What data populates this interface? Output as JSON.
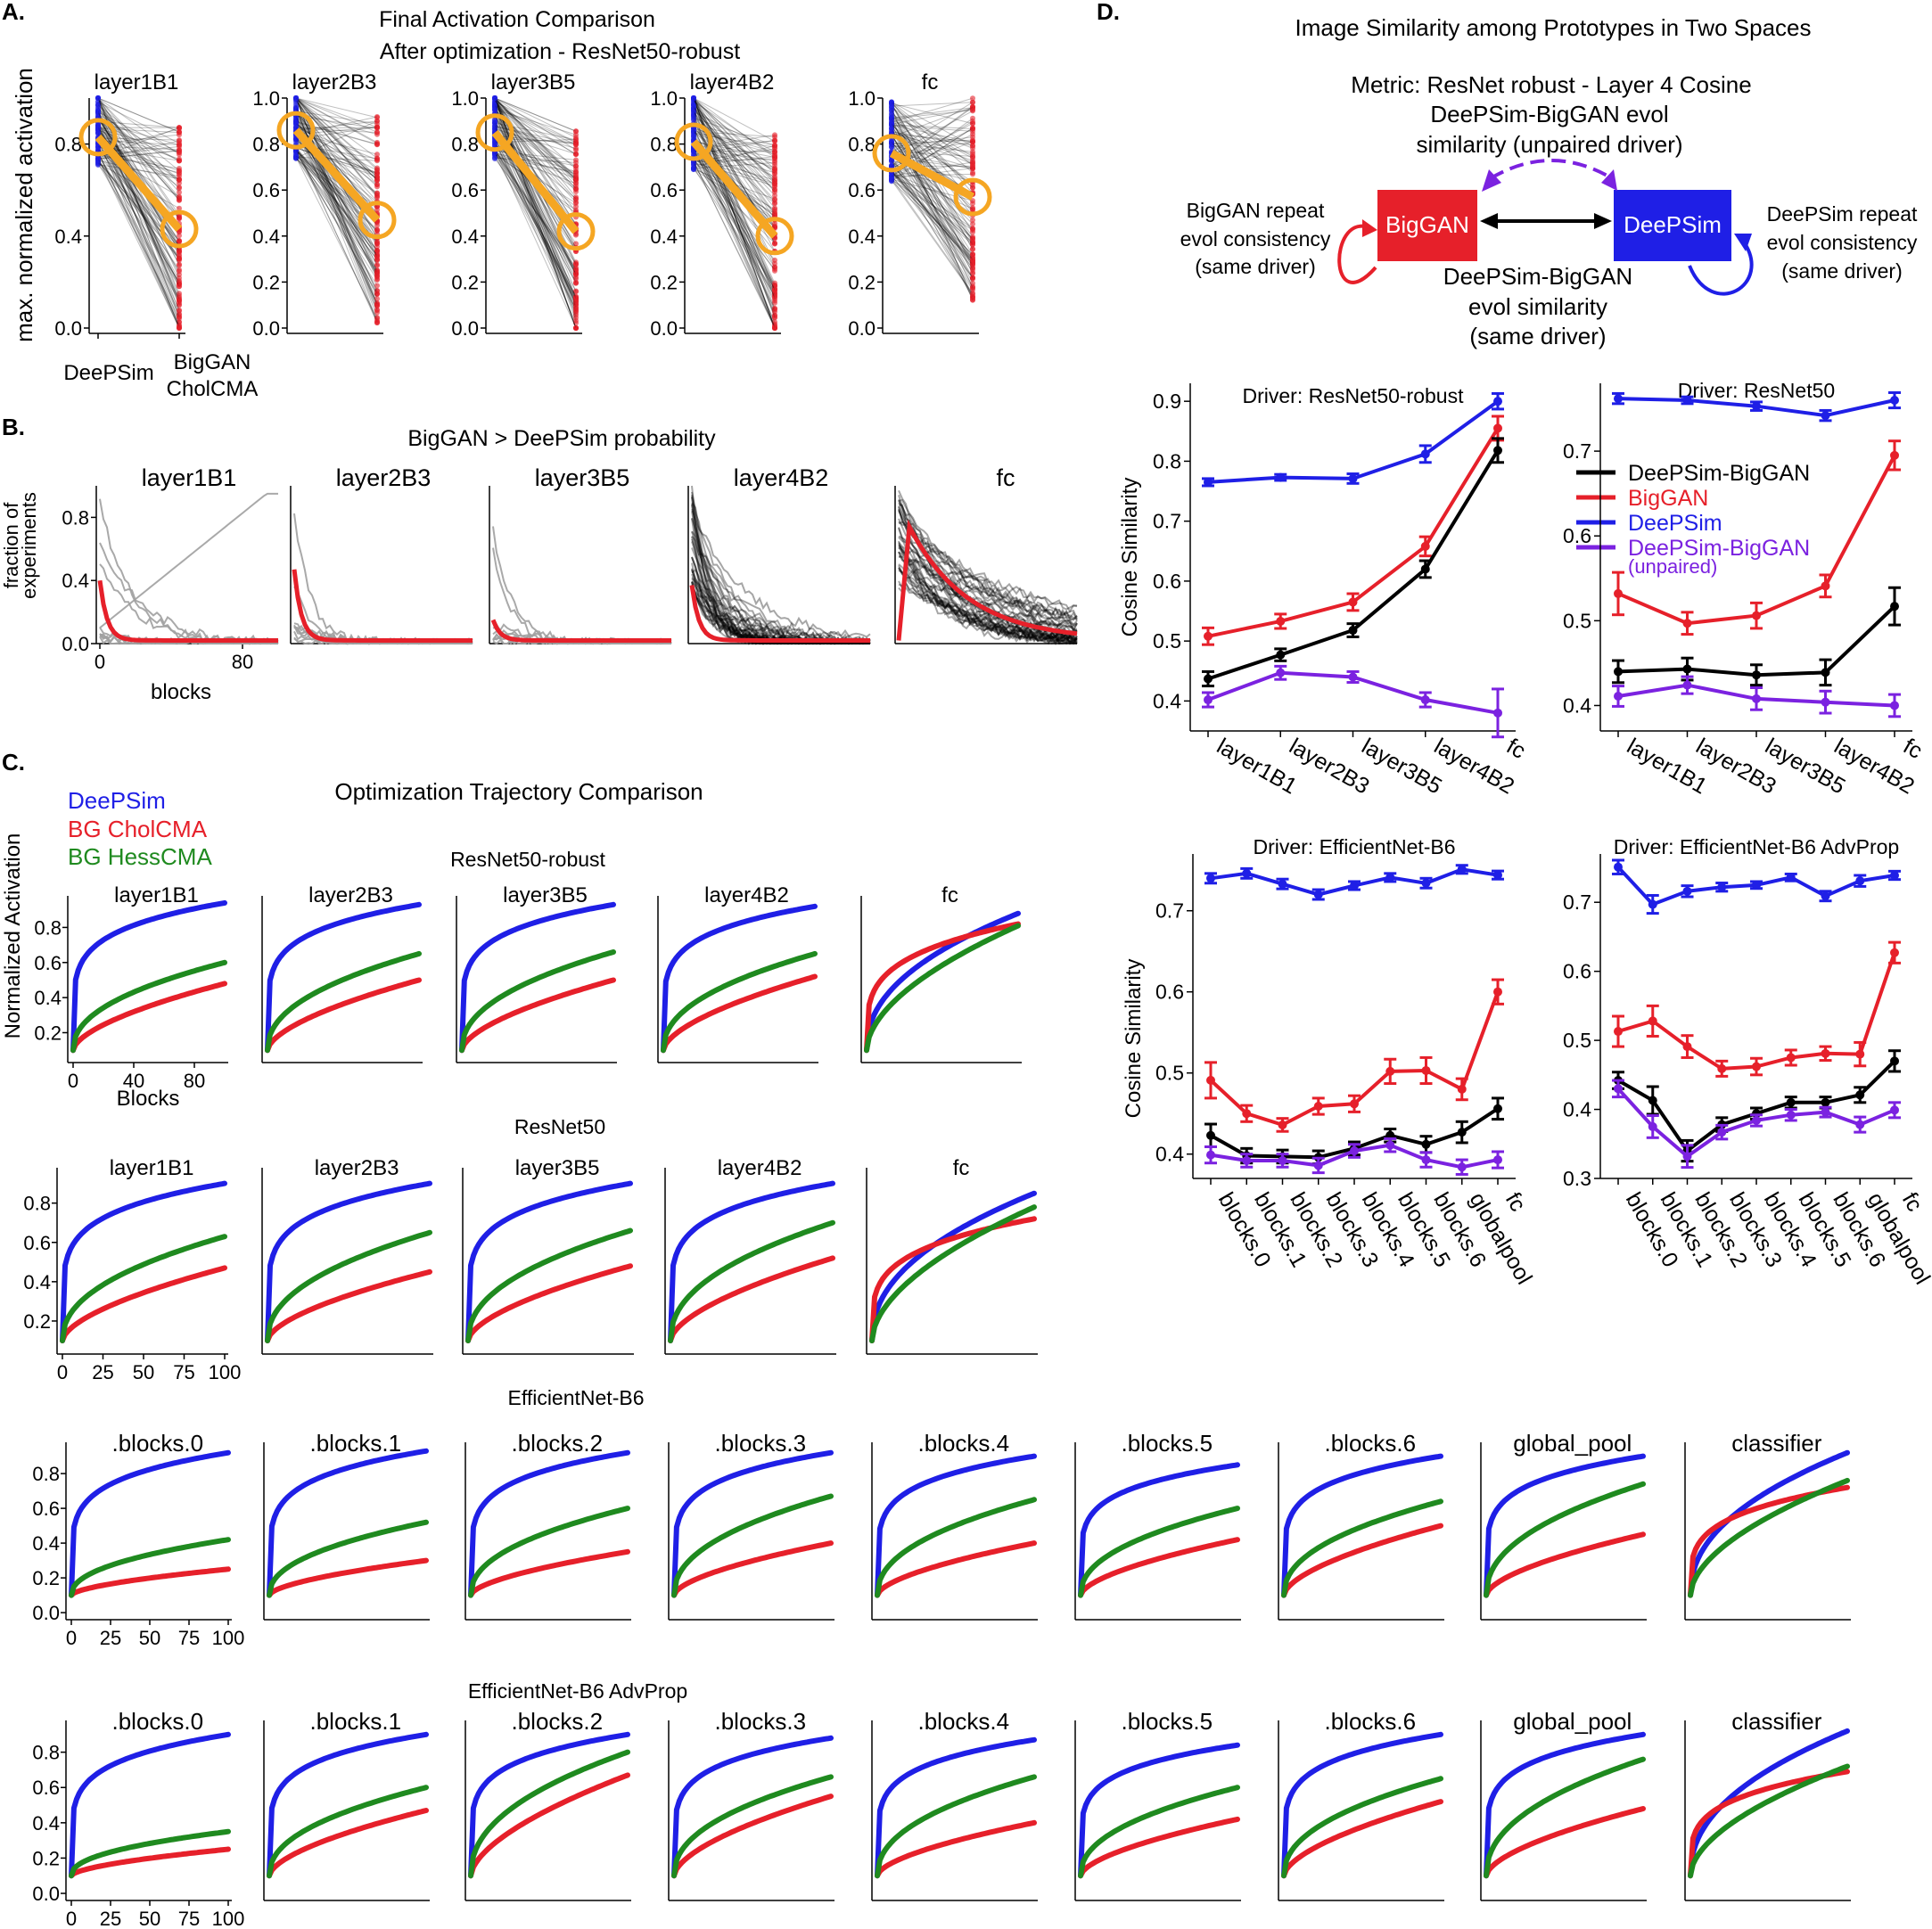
{
  "colors": {
    "deepsim": "#1f1fe6",
    "biggan": "#e6202a",
    "hess": "#1f8a1f",
    "pair": "#000000",
    "unpaired": "#7b22e0",
    "orange": "#f5a623",
    "gray": "#a0a0a0"
  },
  "panelA": {
    "letter": "A.",
    "title1": "Final Activation Comparison",
    "title2": "After optimization - ResNet50-robust",
    "ylabel": "max. normalized activation",
    "xlabel_left": "DeePSim",
    "xlabel_right1": "BigGAN",
    "xlabel_right2": "CholCMA",
    "layers": [
      "layer1B1",
      "layer2B3",
      "layer3B5",
      "layer4B2",
      "fc"
    ],
    "first_ticks": [
      "0.0",
      "0.4",
      "0.8"
    ],
    "other_ticks": [
      "0.0",
      "0.2",
      "0.4",
      "0.6",
      "0.8",
      "1.0"
    ]
  },
  "panelB": {
    "letter": "B.",
    "title": "BigGAN > DeePSim probability",
    "ylabel1": "fraction of",
    "ylabel2": "experiments",
    "xlabel": "blocks",
    "xticks": [
      "0",
      "80"
    ],
    "yticks": [
      "0.0",
      "0.4",
      "0.8"
    ],
    "layers": [
      "layer1B1",
      "layer2B3",
      "layer3B5",
      "layer4B2",
      "fc"
    ]
  },
  "panelC": {
    "letter": "C.",
    "title": "Optimization Trajectory Comparison",
    "legend": [
      "DeePSim",
      "BG CholCMA",
      "BG HessCMA"
    ],
    "ylabel": "Normalized Activation",
    "xlabel": "Blocks",
    "xticks_r1": [
      "0",
      "40",
      "80"
    ],
    "xticks_rest": [
      "0",
      "25",
      "50",
      "75",
      "100"
    ],
    "row1_title": "ResNet50-robust",
    "row2_title": "ResNet50",
    "row3_title": "EfficientNet-B6",
    "row4_title": "EfficientNet-B6 AdvProp",
    "yticks_r1": [
      "0.2",
      "0.4",
      "0.6",
      "0.8"
    ],
    "yticks_r2": [
      "0.2",
      "0.4",
      "0.6",
      "0.8"
    ],
    "yticks_eff": [
      "0.0",
      "0.2",
      "0.4",
      "0.6",
      "0.8"
    ],
    "resnet_layers": [
      "layer1B1",
      "layer2B3",
      "layer3B5",
      "layer4B2",
      "fc"
    ],
    "eff_layers": [
      ".blocks.0",
      ".blocks.1",
      ".blocks.2",
      ".blocks.3",
      ".blocks.4",
      ".blocks.5",
      ".blocks.6",
      "global_pool",
      "classifier"
    ]
  },
  "panelD": {
    "letter": "D.",
    "title": "Image Similarity among Prototypes in Two Spaces",
    "metric": "Metric: ResNet robust - Layer 4 Cosine",
    "unpaired1": "DeePSim-BigGAN evol",
    "unpaired2": "similarity (unpaired driver)",
    "biggan_box": "BigGAN",
    "deepsim_box": "DeePSim",
    "bg_repeat1": "BigGAN repeat",
    "bg_repeat2": "evol consistency",
    "bg_repeat3": "(same driver)",
    "ds_repeat1": "DeePSim repeat",
    "ds_repeat2": "evol consistency",
    "ds_repeat3": "(same driver)",
    "same1": "DeePSim-BigGAN",
    "same2": "evol similarity",
    "same3": "(same driver)",
    "ylabel": "Cosine Similarity",
    "legend": [
      "DeePSim-BigGAN",
      "BigGAN",
      "DeePSim",
      "DeePSim-BigGAN",
      "(unpaired)"
    ]
  },
  "chart_data": [
    {
      "type": "line",
      "title": "Driver: ResNet50-robust",
      "ylabel": "Cosine Similarity",
      "ylim": [
        0.35,
        0.93
      ],
      "yticks": [
        "0.4",
        "0.5",
        "0.6",
        "0.7",
        "0.8",
        "0.9"
      ],
      "categories": [
        "layer1B1",
        "layer2B3",
        "layer3B5",
        "layer4B2",
        "fc"
      ],
      "series": [
        {
          "name": "DeePSim",
          "values": [
            0.765,
            0.773,
            0.771,
            0.812,
            0.9
          ],
          "err": [
            0.006,
            0.005,
            0.008,
            0.014,
            0.013
          ]
        },
        {
          "name": "BigGAN",
          "values": [
            0.508,
            0.533,
            0.565,
            0.658,
            0.855
          ],
          "err": [
            0.014,
            0.012,
            0.014,
            0.016,
            0.02
          ]
        },
        {
          "name": "DeePSim-BigGAN",
          "values": [
            0.437,
            0.477,
            0.518,
            0.62,
            0.818
          ],
          "err": [
            0.012,
            0.01,
            0.011,
            0.014,
            0.02
          ]
        },
        {
          "name": "DeePSim-BigGAN (unpaired)",
          "values": [
            0.402,
            0.447,
            0.44,
            0.402,
            0.38
          ],
          "err": [
            0.012,
            0.011,
            0.009,
            0.012,
            0.04
          ]
        }
      ]
    },
    {
      "type": "line",
      "title": "Driver: ResNet50",
      "ylabel": "",
      "ylim": [
        0.37,
        0.78
      ],
      "yticks": [
        "0.4",
        "0.5",
        "0.6",
        "0.7"
      ],
      "categories": [
        "layer1B1",
        "layer2B3",
        "layer3B5",
        "layer4B2",
        "fc"
      ],
      "series": [
        {
          "name": "DeePSim",
          "values": [
            0.762,
            0.76,
            0.753,
            0.742,
            0.76
          ],
          "err": [
            0.006,
            0.004,
            0.005,
            0.006,
            0.009
          ]
        },
        {
          "name": "BigGAN",
          "values": [
            0.532,
            0.497,
            0.506,
            0.541,
            0.695
          ],
          "err": [
            0.025,
            0.013,
            0.015,
            0.013,
            0.017
          ]
        },
        {
          "name": "DeePSim-BigGAN",
          "values": [
            0.44,
            0.443,
            0.436,
            0.439,
            0.517
          ],
          "err": [
            0.013,
            0.013,
            0.012,
            0.015,
            0.022
          ]
        },
        {
          "name": "DeePSim-BigGAN (unpaired)",
          "values": [
            0.411,
            0.424,
            0.408,
            0.404,
            0.4
          ],
          "err": [
            0.012,
            0.01,
            0.013,
            0.013,
            0.013
          ]
        }
      ]
    },
    {
      "type": "line",
      "title": "Driver: EfficientNet-B6",
      "ylabel": "Cosine Similarity",
      "ylim": [
        0.37,
        0.77
      ],
      "yticks": [
        "0.4",
        "0.5",
        "0.6",
        "0.7"
      ],
      "categories": [
        "blocks.0",
        "blocks.1",
        "blocks.2",
        "blocks.3",
        "blocks.4",
        "blocks.5",
        "blocks.6",
        "globalpool",
        "fc"
      ],
      "series": [
        {
          "name": "DeePSim",
          "values": [
            0.74,
            0.746,
            0.733,
            0.72,
            0.731,
            0.741,
            0.734,
            0.751,
            0.744
          ],
          "err": [
            0.006,
            0.006,
            0.006,
            0.006,
            0.005,
            0.005,
            0.006,
            0.005,
            0.005
          ]
        },
        {
          "name": "BigGAN",
          "values": [
            0.491,
            0.45,
            0.436,
            0.459,
            0.462,
            0.502,
            0.503,
            0.48,
            0.6
          ],
          "err": [
            0.022,
            0.01,
            0.008,
            0.01,
            0.01,
            0.015,
            0.016,
            0.013,
            0.015
          ]
        },
        {
          "name": "DeePSim-BigGAN",
          "values": [
            0.423,
            0.398,
            0.397,
            0.396,
            0.407,
            0.423,
            0.412,
            0.427,
            0.456
          ],
          "err": [
            0.014,
            0.009,
            0.008,
            0.008,
            0.008,
            0.008,
            0.01,
            0.013,
            0.013
          ]
        },
        {
          "name": "DeePSim-BigGAN (unpaired)",
          "values": [
            0.399,
            0.392,
            0.392,
            0.386,
            0.404,
            0.411,
            0.393,
            0.384,
            0.393
          ],
          "err": [
            0.01,
            0.008,
            0.008,
            0.009,
            0.008,
            0.008,
            0.009,
            0.009,
            0.01
          ]
        }
      ]
    },
    {
      "type": "line",
      "title": "Driver: EfficientNet-B6 AdvProp",
      "ylabel": "",
      "ylim": [
        0.3,
        0.77
      ],
      "yticks": [
        "0.3",
        "0.4",
        "0.5",
        "0.6",
        "0.7"
      ],
      "categories": [
        "blocks.0",
        "blocks.1",
        "blocks.2",
        "blocks.3",
        "blocks.4",
        "blocks.5",
        "blocks.6",
        "globalpool",
        "fc"
      ],
      "series": [
        {
          "name": "DeePSim",
          "values": [
            0.751,
            0.697,
            0.716,
            0.722,
            0.725,
            0.736,
            0.709,
            0.731,
            0.739
          ],
          "err": [
            0.01,
            0.013,
            0.008,
            0.006,
            0.005,
            0.005,
            0.007,
            0.008,
            0.006
          ]
        },
        {
          "name": "BigGAN",
          "values": [
            0.513,
            0.528,
            0.491,
            0.459,
            0.462,
            0.475,
            0.481,
            0.48,
            0.627
          ],
          "err": [
            0.022,
            0.022,
            0.016,
            0.011,
            0.012,
            0.011,
            0.01,
            0.017,
            0.015
          ]
        },
        {
          "name": "DeePSim-BigGAN",
          "values": [
            0.442,
            0.413,
            0.34,
            0.378,
            0.394,
            0.41,
            0.41,
            0.421,
            0.47
          ],
          "err": [
            0.012,
            0.02,
            0.015,
            0.01,
            0.008,
            0.008,
            0.008,
            0.011,
            0.015
          ]
        },
        {
          "name": "DeePSim-BigGAN (unpaired)",
          "values": [
            0.43,
            0.375,
            0.332,
            0.367,
            0.384,
            0.392,
            0.396,
            0.378,
            0.399
          ],
          "err": [
            0.012,
            0.016,
            0.016,
            0.01,
            0.008,
            0.008,
            0.007,
            0.011,
            0.011
          ]
        }
      ]
    },
    {
      "type": "line",
      "title": "Optimization Trajectory Comparison",
      "xlabel": "Blocks",
      "ylabel": "Normalized Activation",
      "x_range": [
        0,
        100
      ],
      "series_names": [
        "DeePSim",
        "BG CholCMA",
        "BG HessCMA"
      ],
      "final_values": {
        "ResNet50-robust": {
          "layer1B1": [
            0.94,
            0.48,
            0.6
          ],
          "layer2B3": [
            0.93,
            0.5,
            0.65
          ],
          "layer3B5": [
            0.93,
            0.5,
            0.66
          ],
          "layer4B2": [
            0.92,
            0.52,
            0.65
          ],
          "fc": [
            0.88,
            0.82,
            0.81
          ]
        },
        "ResNet50": {
          "layer1B1": [
            0.9,
            0.47,
            0.63
          ],
          "layer2B3": [
            0.9,
            0.45,
            0.65
          ],
          "layer3B5": [
            0.9,
            0.48,
            0.66
          ],
          "layer4B2": [
            0.9,
            0.52,
            0.7
          ],
          "fc": [
            0.85,
            0.72,
            0.78
          ]
        },
        "EfficientNet-B6": {
          ".blocks.0": [
            0.92,
            0.25,
            0.42
          ],
          ".blocks.1": [
            0.93,
            0.3,
            0.52
          ],
          ".blocks.2": [
            0.92,
            0.35,
            0.6
          ],
          ".blocks.3": [
            0.92,
            0.4,
            0.67
          ],
          ".blocks.4": [
            0.9,
            0.4,
            0.65
          ],
          ".blocks.5": [
            0.85,
            0.42,
            0.6
          ],
          ".blocks.6": [
            0.9,
            0.5,
            0.64
          ],
          "global_pool": [
            0.9,
            0.45,
            0.74
          ],
          "classifier": [
            0.92,
            0.72,
            0.76
          ]
        },
        "EfficientNet-B6 AdvProp": {
          ".blocks.0": [
            0.9,
            0.25,
            0.35
          ],
          ".blocks.1": [
            0.9,
            0.47,
            0.6
          ],
          ".blocks.2": [
            0.9,
            0.67,
            0.8
          ],
          ".blocks.3": [
            0.88,
            0.55,
            0.66
          ],
          ".blocks.4": [
            0.87,
            0.4,
            0.66
          ],
          ".blocks.5": [
            0.84,
            0.42,
            0.6
          ],
          ".blocks.6": [
            0.9,
            0.52,
            0.65
          ],
          "global_pool": [
            0.9,
            0.48,
            0.76
          ],
          "classifier": [
            0.92,
            0.69,
            0.72
          ]
        }
      }
    },
    {
      "type": "scatter",
      "title": "Final Activation Comparison After optimization - ResNet50-robust",
      "categories": [
        "DeePSim",
        "BigGAN CholCMA"
      ],
      "ylim": [
        0,
        1
      ],
      "mean_values": {
        "layer1B1": [
          0.83,
          0.43
        ],
        "layer2B3": [
          0.86,
          0.47
        ],
        "layer3B5": [
          0.85,
          0.42
        ],
        "layer4B2": [
          0.81,
          0.4
        ],
        "fc": [
          0.76,
          0.57
        ]
      }
    },
    {
      "type": "line",
      "title": "BigGAN > DeePSim probability",
      "xlabel": "blocks",
      "ylabel": "fraction of experiments",
      "ylim": [
        0,
        1
      ],
      "mean_peak": {
        "layer1B1": 0.38,
        "layer2B3": 0.45,
        "layer3B5": 0.13,
        "layer4B2": 0.35,
        "fc": 0.72
      }
    }
  ]
}
